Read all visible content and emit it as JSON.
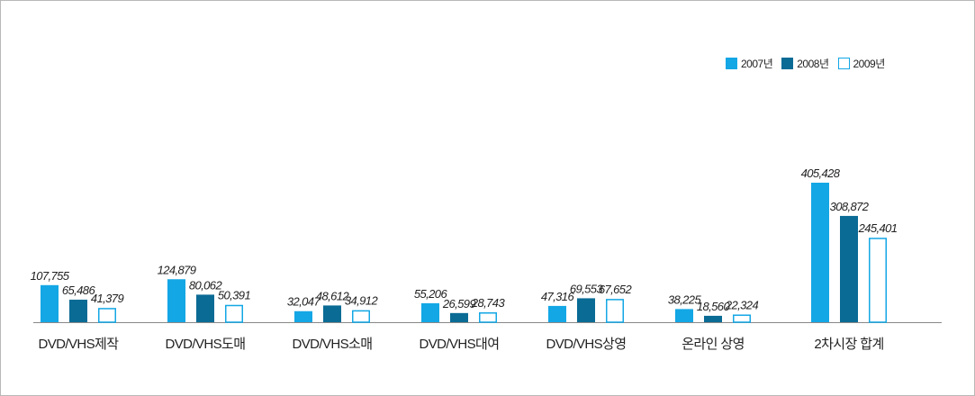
{
  "chart_data": {
    "type": "bar",
    "categories": [
      "DVD/VHS제작",
      "DVD/VHS도매",
      "DVD/VHS소매",
      "DVD/VHS대여",
      "DVD/VHS상영",
      "온라인 상영",
      "2차시장 합계"
    ],
    "series": [
      {
        "name": "2007년",
        "color": "#13a7e5",
        "style": "filled",
        "values": [
          107755,
          124879,
          32047,
          55206,
          47316,
          38225,
          405428
        ]
      },
      {
        "name": "2008년",
        "color": "#0a6b95",
        "style": "filled",
        "values": [
          65486,
          80062,
          48612,
          26599,
          69553,
          18560,
          308872
        ]
      },
      {
        "name": "2009년",
        "color": "#13a7e5",
        "style": "outline",
        "values": [
          41379,
          50391,
          34912,
          28743,
          67652,
          22324,
          245401
        ]
      }
    ],
    "value_labels": [
      [
        "107,755",
        "124,879",
        "32,047",
        "55,206",
        "47,316",
        "38,225",
        "405,428"
      ],
      [
        "65,486",
        "80,062",
        "48,612",
        "26,599",
        "69,553",
        "18,560",
        "308,872"
      ],
      [
        "41,379",
        "50,391",
        "34,912",
        "28,743",
        "67,652",
        "22,324",
        "245,401"
      ]
    ],
    "ylim": [
      0,
      405428
    ],
    "grid": false,
    "legend_position": "top-right",
    "baseline_color": "#888888"
  }
}
